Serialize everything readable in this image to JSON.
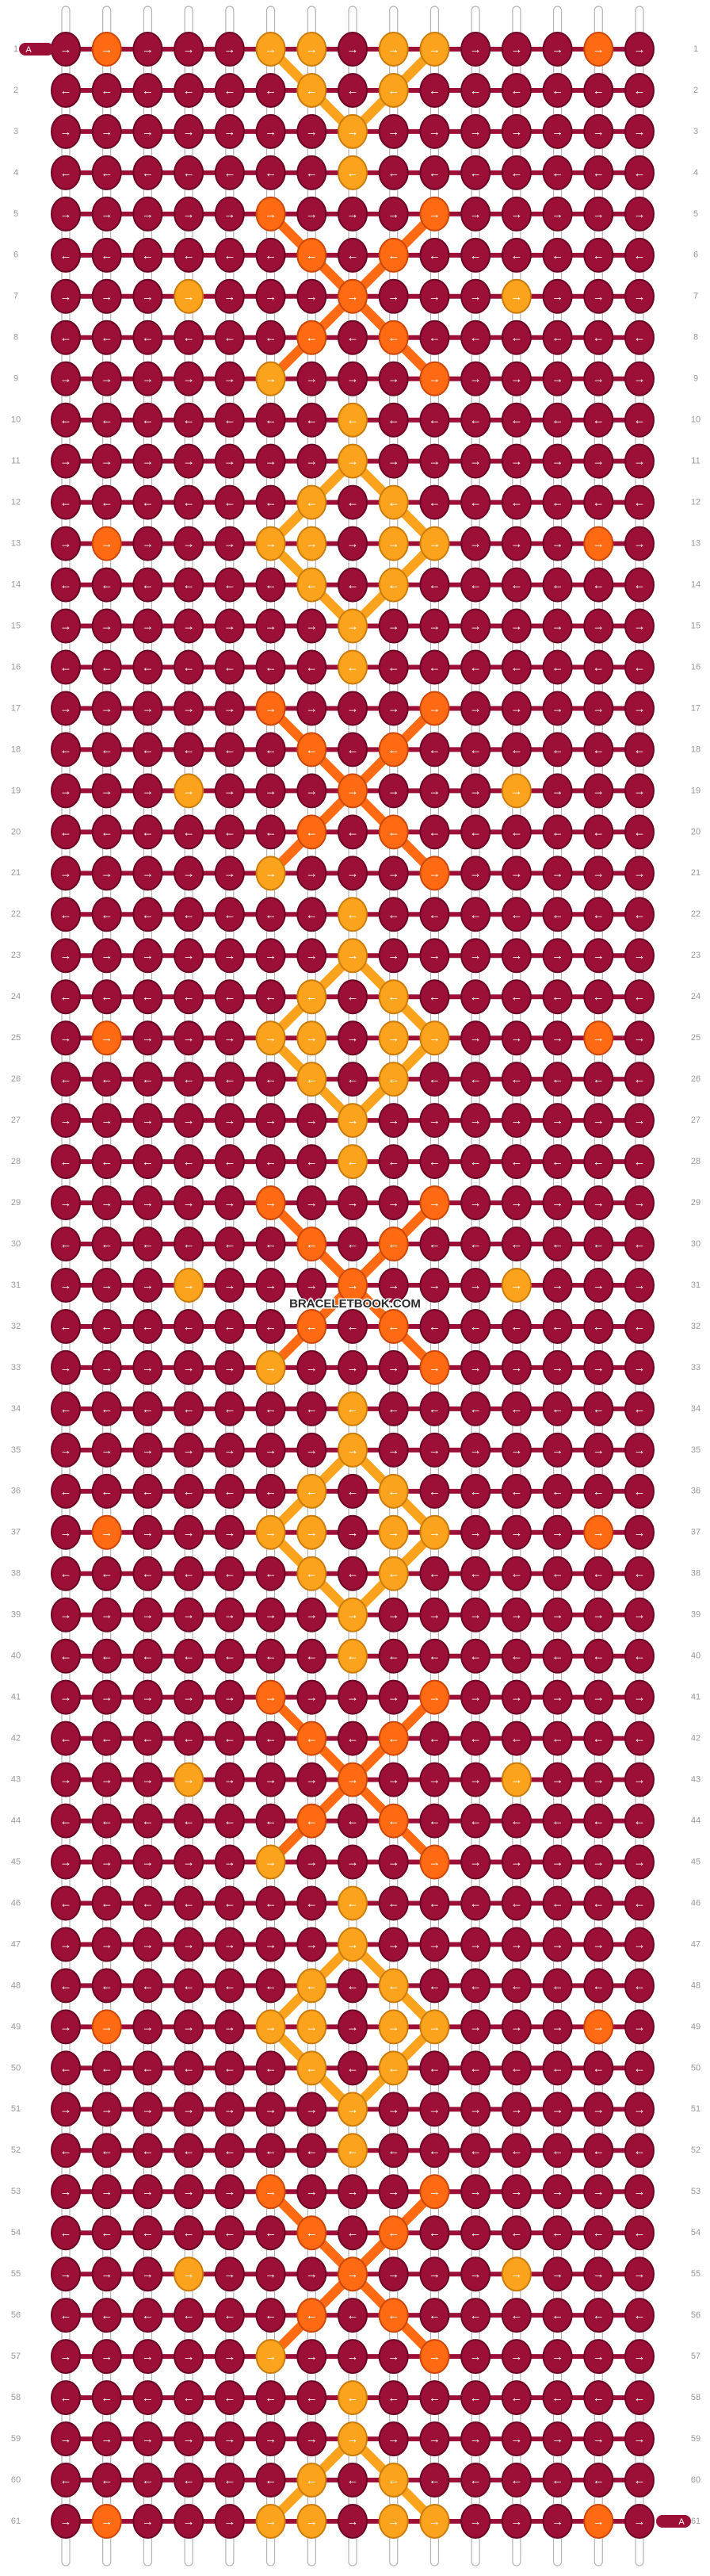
{
  "pattern": {
    "start_marker": "A",
    "end_marker": "A",
    "watermark": "BRACELETBOOK.COM",
    "palette": {
      "b": "#9c0f37",
      "Y": "#fba31c",
      "O": "#ff6a12"
    },
    "rows": [
      {
        "label": "1",
        "arrow": "→",
        "knots": "bObbbYYbYYbbbOb"
      },
      {
        "label": "2",
        "arrow": "←",
        "knots": "bbbbbbYbYbbbbbb"
      },
      {
        "label": "3",
        "arrow": "→",
        "knots": "bbbbbbbYbbbbbbb"
      },
      {
        "label": "4",
        "arrow": "←",
        "knots": "bbbbbbbYbbbbbbb"
      },
      {
        "label": "5",
        "arrow": "→",
        "knots": "bbbbbObbbObbbbb"
      },
      {
        "label": "6",
        "arrow": "←",
        "knots": "bbbbbbObObbbbbb"
      },
      {
        "label": "7",
        "arrow": "→",
        "knots": "bbbYbbbObbbYbbb"
      },
      {
        "label": "8",
        "arrow": "←",
        "knots": "bbbbbbObObbbbbb"
      },
      {
        "label": "9",
        "arrow": "→",
        "knots": "bbbbbYbbbObbbbb"
      },
      {
        "label": "10",
        "arrow": "←",
        "knots": "bbbbbbbYbbbbbbb"
      },
      {
        "label": "11",
        "arrow": "→",
        "knots": "bbbbbbbYbbbbbbb"
      },
      {
        "label": "12",
        "arrow": "←",
        "knots": "bbbbbbYbYbbbbbb"
      },
      {
        "label": "13",
        "arrow": "→",
        "knots": "bObbbYYbYYbbbOb"
      },
      {
        "label": "14",
        "arrow": "←",
        "knots": "bbbbbbYbYbbbbbb"
      },
      {
        "label": "15",
        "arrow": "→",
        "knots": "bbbbbbbYbbbbbbb"
      },
      {
        "label": "16",
        "arrow": "←",
        "knots": "bbbbbbbYbbbbbbb"
      },
      {
        "label": "17",
        "arrow": "→",
        "knots": "bbbbbObbbObbbbb"
      },
      {
        "label": "18",
        "arrow": "←",
        "knots": "bbbbbbObObbbbbb"
      },
      {
        "label": "19",
        "arrow": "→",
        "knots": "bbbYbbbObbbYbbb"
      },
      {
        "label": "20",
        "arrow": "←",
        "knots": "bbbbbbObObbbbbb"
      },
      {
        "label": "21",
        "arrow": "→",
        "knots": "bbbbbYbbbObbbbb"
      },
      {
        "label": "22",
        "arrow": "←",
        "knots": "bbbbbbbYbbbbbbb"
      },
      {
        "label": "23",
        "arrow": "→",
        "knots": "bbbbbbbYbbbbbbb"
      },
      {
        "label": "24",
        "arrow": "←",
        "knots": "bbbbbbYbYbbbbbb"
      },
      {
        "label": "25",
        "arrow": "→",
        "knots": "bObbbYYbYYbbbOb"
      },
      {
        "label": "26",
        "arrow": "←",
        "knots": "bbbbbbYbYbbbbbb"
      },
      {
        "label": "27",
        "arrow": "→",
        "knots": "bbbbbbbYbbbbbbb"
      },
      {
        "label": "28",
        "arrow": "←",
        "knots": "bbbbbbbYbbbbbbb"
      },
      {
        "label": "29",
        "arrow": "→",
        "knots": "bbbbbObbbObbbbb"
      },
      {
        "label": "30",
        "arrow": "←",
        "knots": "bbbbbbObObbbbbb"
      },
      {
        "label": "31",
        "arrow": "→",
        "knots": "bbbYbbbObbbYbbb"
      },
      {
        "label": "32",
        "arrow": "←",
        "knots": "bbbbbbObObbbbbb"
      },
      {
        "label": "33",
        "arrow": "→",
        "knots": "bbbbbYbbbObbbbb"
      },
      {
        "label": "34",
        "arrow": "←",
        "knots": "bbbbbbbYbbbbbbb"
      },
      {
        "label": "35",
        "arrow": "→",
        "knots": "bbbbbbbYbbbbbbb"
      },
      {
        "label": "36",
        "arrow": "←",
        "knots": "bbbbbbYbYbbbbbb"
      },
      {
        "label": "37",
        "arrow": "→",
        "knots": "bObbbYYbYYbbbOb"
      },
      {
        "label": "38",
        "arrow": "←",
        "knots": "bbbbbbYbYbbbbbb"
      },
      {
        "label": "39",
        "arrow": "→",
        "knots": "bbbbbbbYbbbbbbb"
      },
      {
        "label": "40",
        "arrow": "←",
        "knots": "bbbbbbbYbbbbbbb"
      },
      {
        "label": "41",
        "arrow": "→",
        "knots": "bbbbbObbbObbbbb"
      },
      {
        "label": "42",
        "arrow": "←",
        "knots": "bbbbbbObObbbbbb"
      },
      {
        "label": "43",
        "arrow": "→",
        "knots": "bbbYbbbObbbYbbb"
      },
      {
        "label": "44",
        "arrow": "←",
        "knots": "bbbbbbObObbbbbb"
      },
      {
        "label": "45",
        "arrow": "→",
        "knots": "bbbbbYbbbObbbbb"
      },
      {
        "label": "46",
        "arrow": "←",
        "knots": "bbbbbbbYbbbbbbb"
      },
      {
        "label": "47",
        "arrow": "→",
        "knots": "bbbbbbbYbbbbbbb"
      },
      {
        "label": "48",
        "arrow": "←",
        "knots": "bbbbbbYbYbbbbbb"
      },
      {
        "label": "49",
        "arrow": "→",
        "knots": "bObbbYYbYYbbbOb"
      },
      {
        "label": "50",
        "arrow": "←",
        "knots": "bbbbbbYbYbbbbbb"
      },
      {
        "label": "51",
        "arrow": "→",
        "knots": "bbbbbbbYbbbbbbb"
      },
      {
        "label": "52",
        "arrow": "←",
        "knots": "bbbbbbbYbbbbbbb"
      },
      {
        "label": "53",
        "arrow": "→",
        "knots": "bbbbbObbbObbbbb"
      },
      {
        "label": "54",
        "arrow": "←",
        "knots": "bbbbbbObObbbbbb"
      },
      {
        "label": "55",
        "arrow": "→",
        "knots": "bbbYbbbObbbYbbb"
      },
      {
        "label": "56",
        "arrow": "←",
        "knots": "bbbbbbObObbbbbb"
      },
      {
        "label": "57",
        "arrow": "→",
        "knots": "bbbbbYbbbObbbbb"
      },
      {
        "label": "58",
        "arrow": "←",
        "knots": "bbbbbbbYbbbbbbb"
      },
      {
        "label": "59",
        "arrow": "→",
        "knots": "bbbbbbbYbbbbbbb"
      },
      {
        "label": "60",
        "arrow": "←",
        "knots": "bbbbbbYbYbbbbbb"
      },
      {
        "label": "61",
        "arrow": "→",
        "knots": "bObbbYYbYYbbbOb"
      }
    ]
  }
}
